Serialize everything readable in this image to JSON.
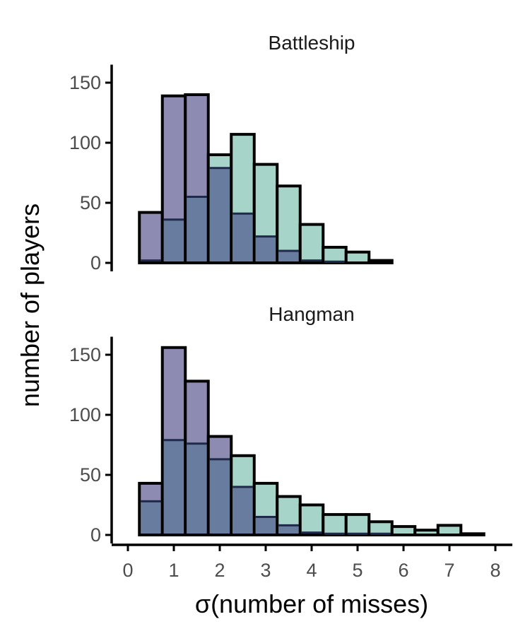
{
  "chart_data": {
    "type": "bar",
    "xlabel": "σ(number of misses)",
    "ylabel": "number of players",
    "xlim": [
      -0.4,
      8.3
    ],
    "ylim": [
      -5,
      165
    ],
    "x_ticks": [
      "0",
      "1",
      "2",
      "3",
      "4",
      "5",
      "6",
      "7",
      "8"
    ],
    "y_ticks": [
      "0",
      "50",
      "100",
      "150"
    ],
    "bin_width": 0.5,
    "colors": {
      "purple": "#8e8bb2",
      "green": "#a6d4c8",
      "overlap": "#687c9f"
    },
    "panels": [
      {
        "title": "Battleship",
        "bin_centers": [
          0.5,
          1.0,
          1.5,
          2.0,
          2.5,
          3.0,
          3.5,
          4.0,
          4.5,
          5.0,
          5.5
        ],
        "series": [
          {
            "values": [
              42,
              139,
              140,
              79,
              41,
              22,
              10,
              2,
              1,
              0,
              0
            ]
          },
          {
            "values": [
              2,
              36,
              55,
              90,
              107,
              82,
              64,
              32,
              13,
              9,
              2
            ]
          }
        ]
      },
      {
        "title": "Hangman",
        "bin_centers": [
          0.5,
          1.0,
          1.5,
          2.0,
          2.5,
          3.0,
          3.5,
          4.0,
          4.5,
          5.0,
          5.5,
          6.0,
          6.5,
          7.0,
          7.5
        ],
        "series": [
          {
            "values": [
              43,
              156,
              128,
              82,
              40,
              15,
              8,
              2,
              1,
              1,
              1,
              0,
              0,
              0,
              0
            ]
          },
          {
            "values": [
              28,
              79,
              76,
              63,
              66,
              43,
              32,
              25,
              17,
              17,
              11,
              7,
              4,
              8,
              1
            ]
          }
        ]
      }
    ]
  }
}
